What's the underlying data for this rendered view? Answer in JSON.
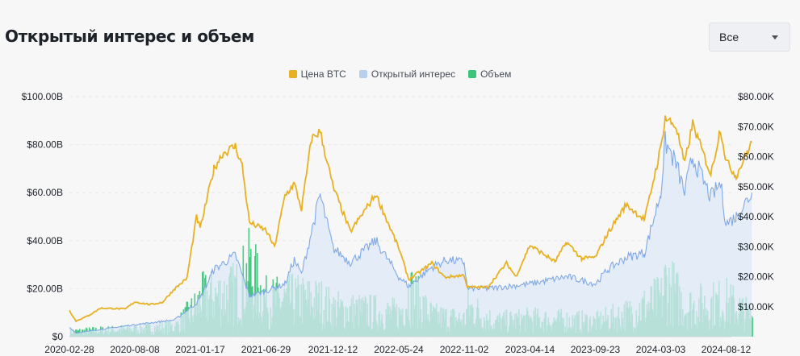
{
  "header": {
    "title": "Открытый интерес и объем",
    "range_select": {
      "value": "Все",
      "icon": "chevron-down-icon"
    }
  },
  "colors": {
    "price": "#E8B122",
    "open_interest": "#7FA9E6",
    "open_interest_fill": "#DDE8F7",
    "volume": "#3CC47A"
  },
  "chart_data": {
    "type": "line",
    "legend": {
      "position": "top-center",
      "entries": [
        "Цена BTC",
        "Открытый интерес",
        "Объем"
      ]
    },
    "grid": {
      "horizontal": true,
      "style": "dashed"
    },
    "x": {
      "tick_labels": [
        "2020-02-28",
        "2020-08-08",
        "2021-01-17",
        "2021-06-29",
        "2021-12-12",
        "2022-05-24",
        "2022-11-02",
        "2023-04-14",
        "2023-09-23",
        "2024-03-03",
        "2024-08-12"
      ],
      "range": [
        "2020-02-28",
        "2024-10-15"
      ]
    },
    "y_left": {
      "tick_labels": [
        "$0",
        "$20.00B",
        "$40.00B",
        "$60.00B",
        "$80.00B",
        "$100.00B"
      ],
      "range": [
        0,
        100
      ],
      "unit": "B USD"
    },
    "y_right": {
      "tick_labels": [
        "$10.00K",
        "$20.00K",
        "$30.00K",
        "$40.00K",
        "$50.00K",
        "$60.00K",
        "$70.00K",
        "$80.00K"
      ],
      "range": [
        0,
        80
      ],
      "unit": "K USD"
    },
    "series": [
      {
        "name": "Цена BTC",
        "axis": "right",
        "type": "line",
        "points": [
          [
            "2020-02-28",
            8.7
          ],
          [
            "2020-03-15",
            5.2
          ],
          [
            "2020-04-15",
            7.0
          ],
          [
            "2020-05-15",
            9.5
          ],
          [
            "2020-06-15",
            9.4
          ],
          [
            "2020-07-15",
            9.2
          ],
          [
            "2020-08-08",
            11.6
          ],
          [
            "2020-09-15",
            10.7
          ],
          [
            "2020-10-15",
            11.4
          ],
          [
            "2020-11-15",
            16.0
          ],
          [
            "2020-12-15",
            19.4
          ],
          [
            "2021-01-08",
            40.0
          ],
          [
            "2021-01-17",
            36.0
          ],
          [
            "2021-02-20",
            56.0
          ],
          [
            "2021-03-13",
            61.0
          ],
          [
            "2021-04-14",
            63.5
          ],
          [
            "2021-05-01",
            57.0
          ],
          [
            "2021-05-19",
            38.0
          ],
          [
            "2021-06-29",
            35.5
          ],
          [
            "2021-07-20",
            29.8
          ],
          [
            "2021-08-15",
            47.0
          ],
          [
            "2021-09-07",
            51.0
          ],
          [
            "2021-09-25",
            42.5
          ],
          [
            "2021-10-20",
            66.0
          ],
          [
            "2021-11-10",
            68.5
          ],
          [
            "2021-12-12",
            50.0
          ],
          [
            "2022-01-24",
            35.0
          ],
          [
            "2022-03-28",
            47.5
          ],
          [
            "2022-05-24",
            29.5
          ],
          [
            "2022-06-18",
            19.0
          ],
          [
            "2022-08-14",
            24.5
          ],
          [
            "2022-09-15",
            19.8
          ],
          [
            "2022-11-02",
            20.5
          ],
          [
            "2022-11-10",
            16.5
          ],
          [
            "2022-12-30",
            16.5
          ],
          [
            "2023-02-15",
            24.5
          ],
          [
            "2023-03-10",
            20.0
          ],
          [
            "2023-04-14",
            30.5
          ],
          [
            "2023-06-15",
            25.0
          ],
          [
            "2023-07-14",
            31.5
          ],
          [
            "2023-08-20",
            26.0
          ],
          [
            "2023-09-23",
            26.5
          ],
          [
            "2023-10-24",
            34.5
          ],
          [
            "2023-12-08",
            44.0
          ],
          [
            "2024-01-23",
            39.0
          ],
          [
            "2024-03-03",
            63.0
          ],
          [
            "2024-03-14",
            73.0
          ],
          [
            "2024-04-10",
            70.0
          ],
          [
            "2024-05-01",
            57.5
          ],
          [
            "2024-05-21",
            71.0
          ],
          [
            "2024-07-05",
            54.0
          ],
          [
            "2024-07-29",
            69.5
          ],
          [
            "2024-08-12",
            58.5
          ],
          [
            "2024-09-06",
            53.5
          ],
          [
            "2024-10-15",
            65.0
          ]
        ]
      },
      {
        "name": "Открытый интерес",
        "axis": "left",
        "type": "area",
        "points": [
          [
            "2020-02-28",
            4.0
          ],
          [
            "2020-03-15",
            1.5
          ],
          [
            "2020-05-15",
            3.0
          ],
          [
            "2020-08-08",
            5.0
          ],
          [
            "2020-11-15",
            7.0
          ],
          [
            "2021-01-08",
            14.0
          ],
          [
            "2021-01-17",
            16.0
          ],
          [
            "2021-02-20",
            28.0
          ],
          [
            "2021-04-14",
            34.0
          ],
          [
            "2021-05-19",
            17.0
          ],
          [
            "2021-06-29",
            19.0
          ],
          [
            "2021-08-15",
            22.0
          ],
          [
            "2021-09-07",
            32.0
          ],
          [
            "2021-09-25",
            26.0
          ],
          [
            "2021-11-10",
            59.0
          ],
          [
            "2021-12-12",
            37.0
          ],
          [
            "2022-01-24",
            31.0
          ],
          [
            "2022-03-28",
            40.0
          ],
          [
            "2022-05-24",
            25.0
          ],
          [
            "2022-06-18",
            21.0
          ],
          [
            "2022-08-14",
            29.0
          ],
          [
            "2022-09-20",
            32.0
          ],
          [
            "2022-11-02",
            31.0
          ],
          [
            "2022-11-10",
            20.0
          ],
          [
            "2022-12-30",
            20.0
          ],
          [
            "2023-04-14",
            22.0
          ],
          [
            "2023-07-14",
            25.0
          ],
          [
            "2023-09-23",
            22.0
          ],
          [
            "2023-10-24",
            28.0
          ],
          [
            "2023-12-08",
            33.0
          ],
          [
            "2024-01-23",
            35.0
          ],
          [
            "2024-03-03",
            60.0
          ],
          [
            "2024-03-14",
            81.0
          ],
          [
            "2024-04-10",
            72.0
          ],
          [
            "2024-05-01",
            60.0
          ],
          [
            "2024-05-21",
            75.0
          ],
          [
            "2024-07-05",
            58.0
          ],
          [
            "2024-07-29",
            64.0
          ],
          [
            "2024-08-12",
            47.0
          ],
          [
            "2024-09-06",
            50.0
          ],
          [
            "2024-10-15",
            60.0
          ]
        ]
      },
      {
        "name": "Объем",
        "axis": "left",
        "type": "bar",
        "points": [
          [
            "2020-02-28",
            2.0
          ],
          [
            "2020-05-15",
            2.5
          ],
          [
            "2020-08-08",
            3.0
          ],
          [
            "2020-11-15",
            4.0
          ],
          [
            "2021-01-08",
            12.0
          ],
          [
            "2021-01-17",
            15.0
          ],
          [
            "2021-04-14",
            18.0
          ],
          [
            "2021-05-19",
            26.0
          ],
          [
            "2021-06-29",
            14.0
          ],
          [
            "2021-09-07",
            15.0
          ],
          [
            "2021-11-10",
            14.0
          ],
          [
            "2021-12-12",
            11.0
          ],
          [
            "2022-03-28",
            10.0
          ],
          [
            "2022-05-24",
            9.0
          ],
          [
            "2022-06-18",
            18.0
          ],
          [
            "2022-08-14",
            8.0
          ],
          [
            "2022-11-02",
            7.0
          ],
          [
            "2022-11-10",
            12.0
          ],
          [
            "2023-01-15",
            6.0
          ],
          [
            "2023-04-14",
            7.0
          ],
          [
            "2023-09-23",
            6.0
          ],
          [
            "2023-12-08",
            9.0
          ],
          [
            "2024-03-03",
            15.0
          ],
          [
            "2024-03-14",
            22.0
          ],
          [
            "2024-05-01",
            12.0
          ],
          [
            "2024-08-12",
            14.0
          ],
          [
            "2024-10-15",
            8.0
          ]
        ]
      }
    ]
  }
}
